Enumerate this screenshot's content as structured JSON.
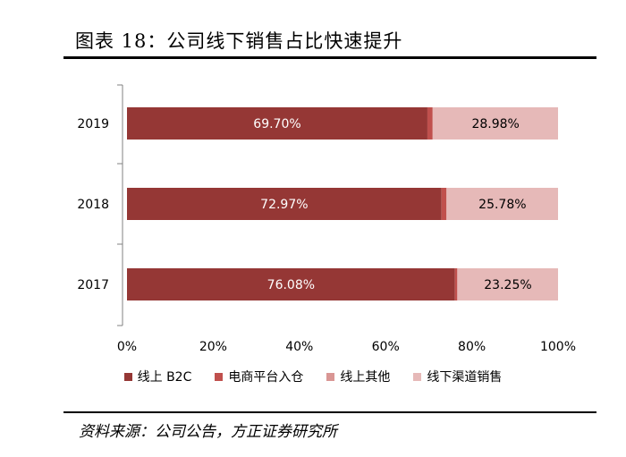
{
  "header": {
    "title": "图表 18：公司线下销售占比快速提升"
  },
  "footer": {
    "source": "资料来源：公司公告，方正证券研究所"
  },
  "chart_data": {
    "type": "bar",
    "orientation": "horizontal",
    "stacked": true,
    "categories": [
      "2019",
      "2018",
      "2017"
    ],
    "xlim": [
      0,
      100
    ],
    "x_ticks": [
      "0%",
      "20%",
      "40%",
      "60%",
      "80%",
      "100%"
    ],
    "grid": false,
    "legend_position": "bottom",
    "series": [
      {
        "name": "线上 B2C",
        "color": "#953735",
        "values": [
          69.7,
          72.97,
          76.08
        ],
        "labels": [
          "69.70%",
          "72.97%",
          "76.08%"
        ]
      },
      {
        "name": "电商平台入仓",
        "color": "#c0504d",
        "values": [
          1.17,
          1.11,
          0.52
        ],
        "labels": [
          "",
          "",
          ""
        ]
      },
      {
        "name": "线上其他",
        "color": "#d99694",
        "values": [
          0.15,
          0.14,
          0.15
        ],
        "labels": [
          "",
          "",
          ""
        ]
      },
      {
        "name": "线下渠道销售",
        "color": "#e6b9b8",
        "values": [
          28.98,
          25.78,
          23.25
        ],
        "labels": [
          "28.98%",
          "25.78%",
          "23.25%"
        ]
      }
    ]
  }
}
